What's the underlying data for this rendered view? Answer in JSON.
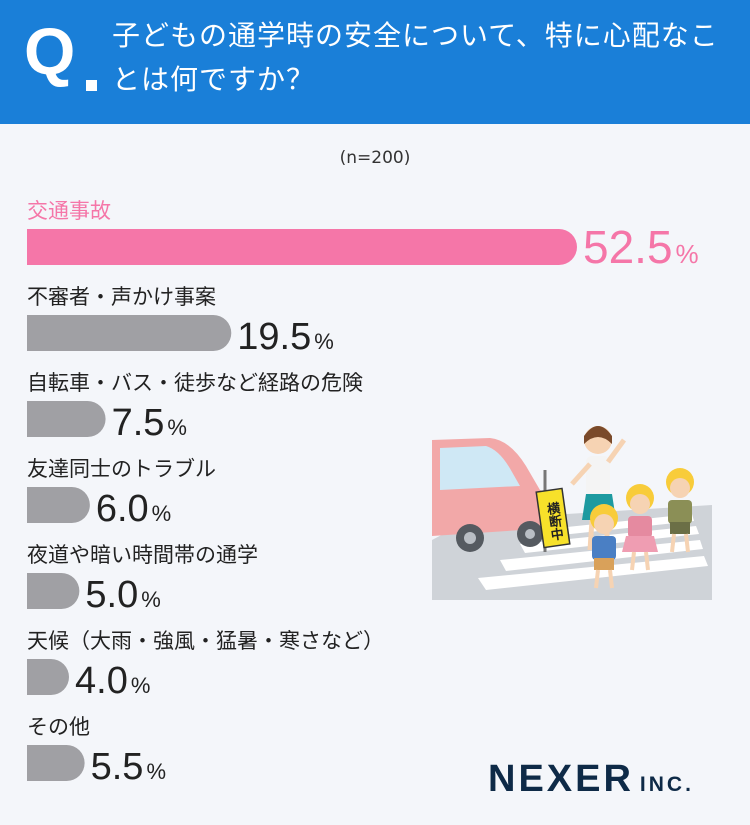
{
  "header": {
    "q_mark": "Q",
    "question": "子どもの通学時の安全について、特に心配なことは何ですか？"
  },
  "sample": "(n=200)",
  "chart_data": {
    "type": "bar",
    "orientation": "horizontal",
    "categories": [
      "交通事故",
      "不審者・声かけ事案",
      "自転車・バス・徒歩など経路の危険",
      "友達同士のトラブル",
      "夜道や暗い時間帯の通学",
      "天候（大雨・強風・猛暑・寒さなど）",
      "その他"
    ],
    "values": [
      52.5,
      19.5,
      7.5,
      6.0,
      5.0,
      4.0,
      5.5
    ],
    "value_labels": [
      "52.5",
      "19.5",
      "7.5",
      "6.0",
      "5.0",
      "4.0",
      "5.5"
    ],
    "unit": "%",
    "highlight_index": 0,
    "colors": {
      "highlight": "#f576a8",
      "default": "#a0a0a4",
      "label_default": "#222222"
    }
  },
  "illustration": {
    "sign_text": "横断中"
  },
  "brand": {
    "name": "NEXER",
    "suffix": "INC."
  }
}
